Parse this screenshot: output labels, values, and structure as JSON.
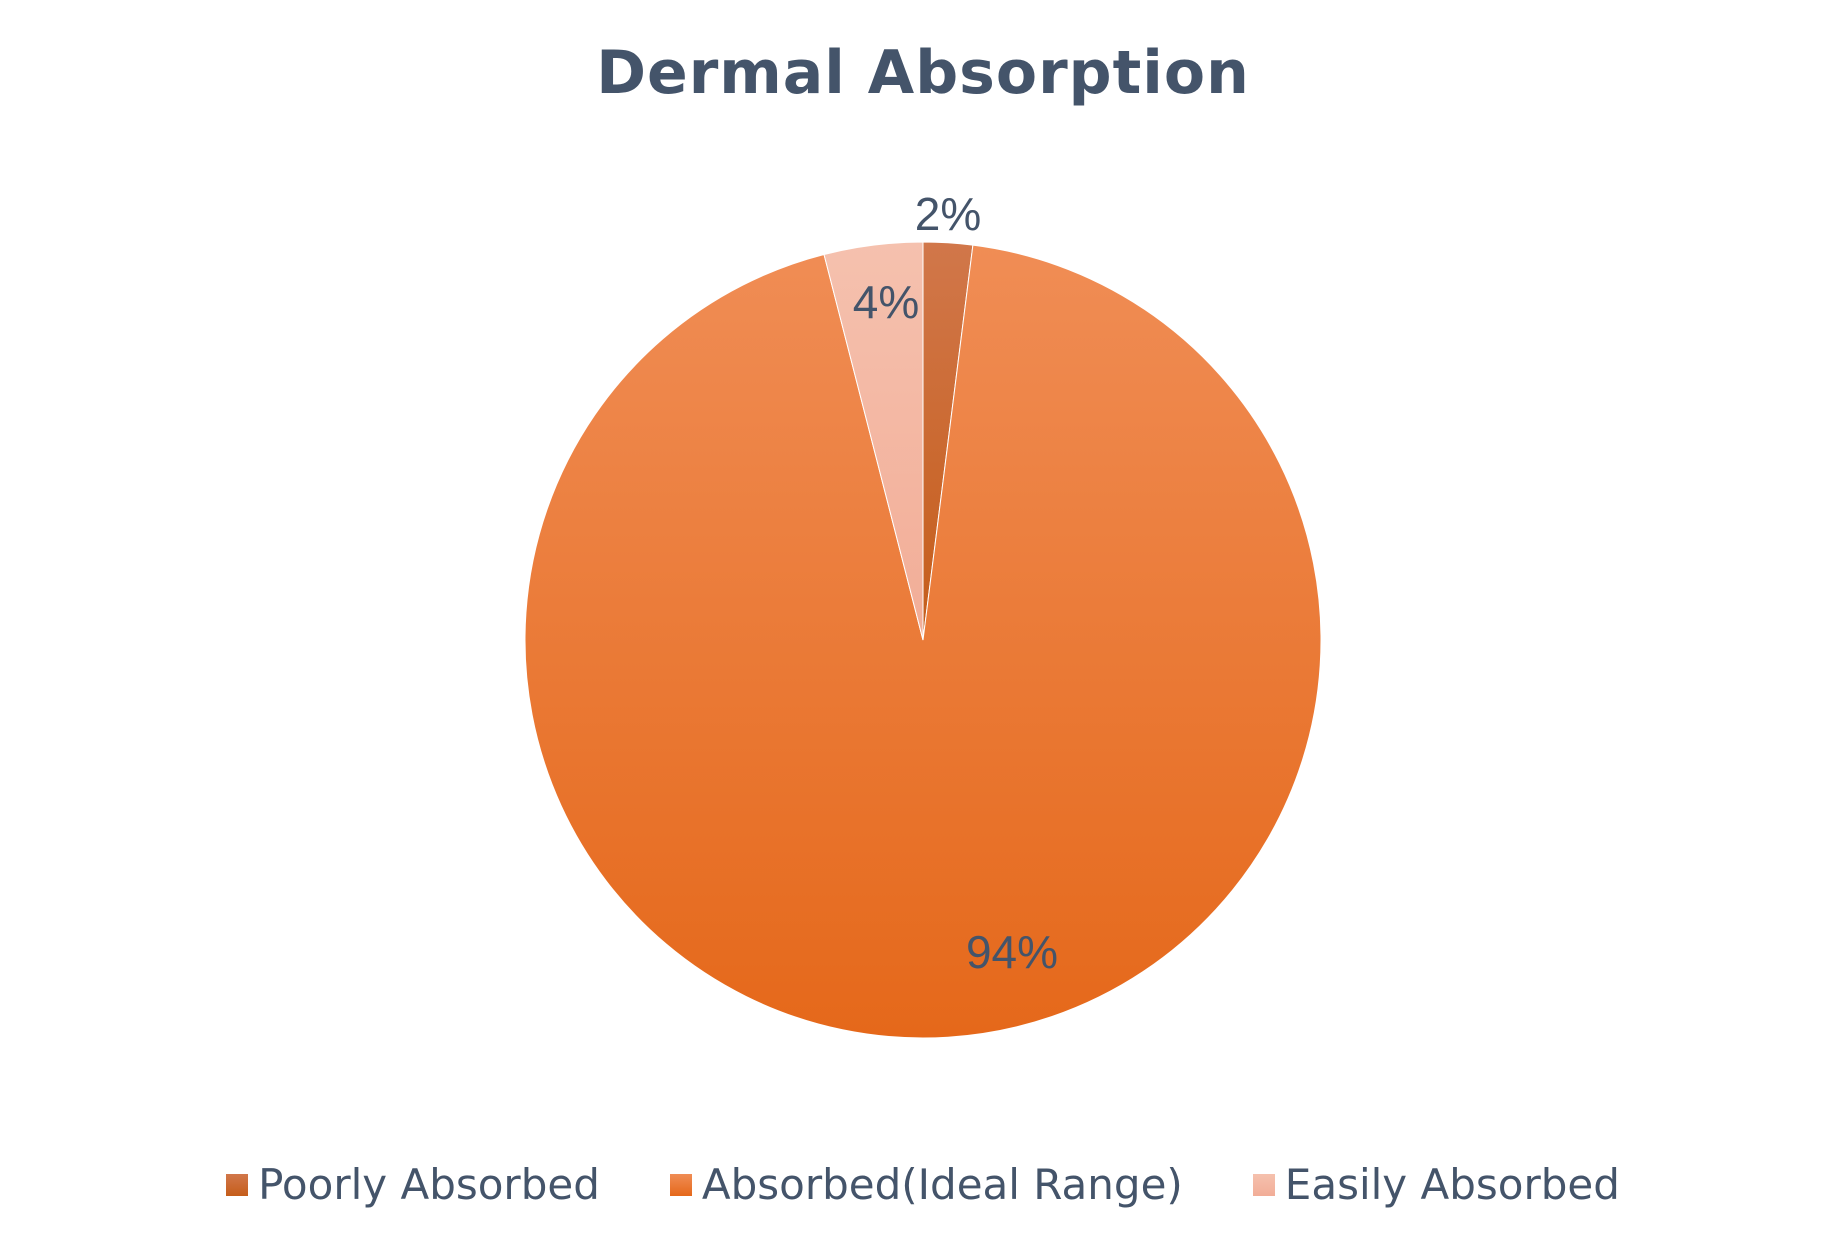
{
  "chart_data": {
    "type": "pie",
    "title": "Dermal Absorption",
    "slices": [
      {
        "name": "Poorly Absorbed",
        "value": 2,
        "label": "2%",
        "color": "#cf6a2c",
        "gradient": [
          "#d1774a",
          "#c55d1a"
        ]
      },
      {
        "name": "Absorbed(Ideal Range)",
        "value": 94,
        "label": "94%",
        "color": "#f07a2a",
        "gradient": [
          "#f08d55",
          "#e5681a"
        ]
      },
      {
        "name": "Easily Absorbed",
        "value": 4,
        "label": "4%",
        "color": "#f4b8a4",
        "gradient": [
          "#f5c1ae",
          "#f2ad97"
        ]
      }
    ],
    "legend_position": "bottom",
    "start_angle": "top",
    "direction": "clockwise"
  }
}
